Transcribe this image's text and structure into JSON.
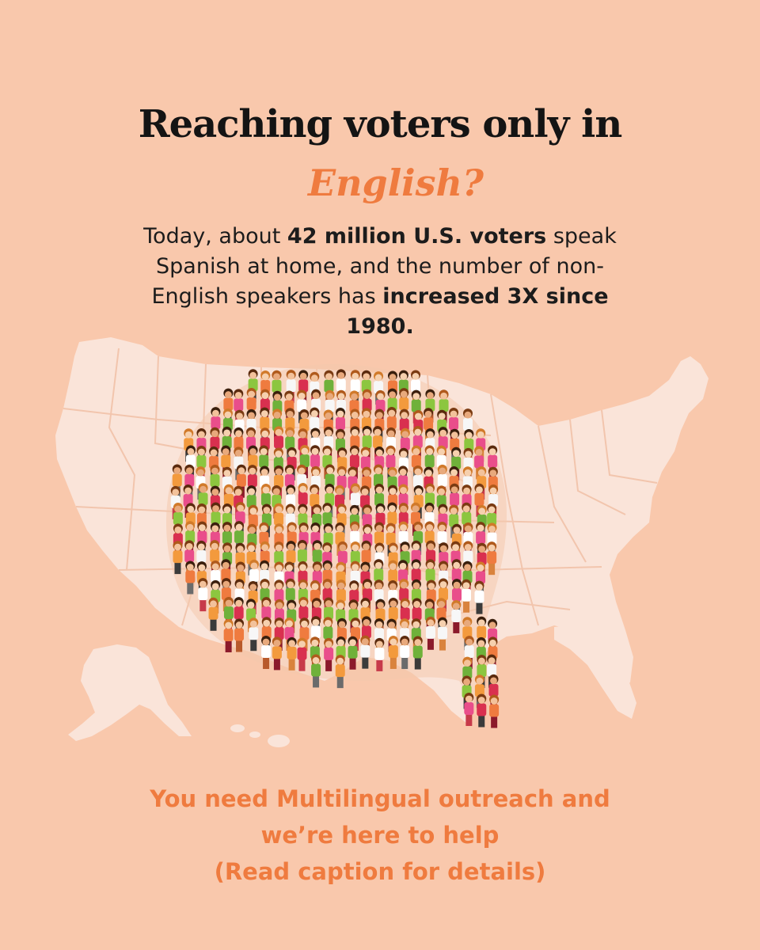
{
  "headline": {
    "line1": "Reaching voters only in",
    "line2": "English?"
  },
  "body": {
    "t1": "Today, about ",
    "b1": "42 million U.S. voters",
    "t2": " speak Spanish at home, and the number of non-English speakers has ",
    "b2": "increased 3X since 1980."
  },
  "cta": {
    "line1": "You need Multilingual outreach and",
    "line2": "we’re here to help",
    "line3": "(Read caption for details)"
  },
  "colors": {
    "background": "#f9c8ac",
    "accent": "#ef7b3f",
    "map": "#fae4d9",
    "text": "#141414"
  },
  "illustration": {
    "map_icon": "us-map-icon",
    "crowd_icon": "speech-bubble-crowd-icon"
  }
}
